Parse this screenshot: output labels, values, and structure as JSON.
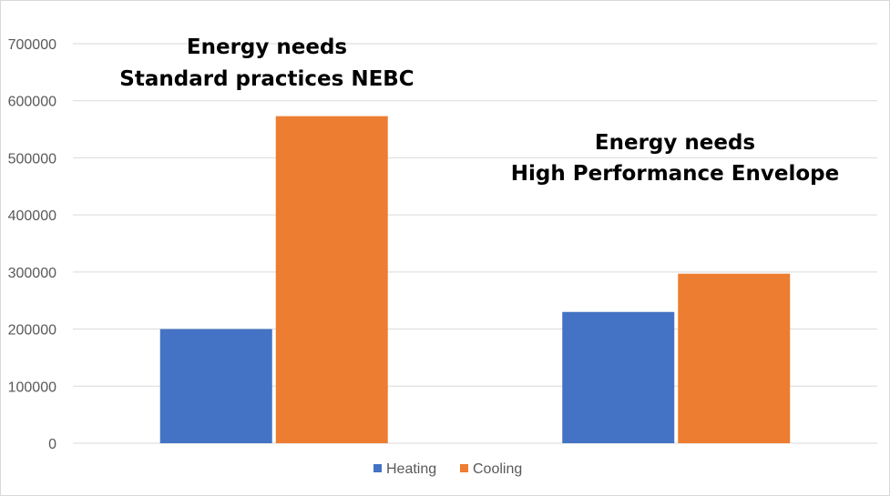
{
  "chart_data": {
    "type": "bar",
    "categories": [
      "",
      ""
    ],
    "series": [
      {
        "name": "Heating",
        "color": "#4472C4",
        "values": [
          200000,
          230000
        ]
      },
      {
        "name": "Cooling",
        "color": "#ED7D31",
        "values": [
          573000,
          297000
        ]
      }
    ],
    "ylim": [
      0,
      700000
    ],
    "yticks": [
      "0",
      "100000",
      "200000",
      "300000",
      "400000",
      "500000",
      "600000",
      "700000"
    ],
    "grid": true,
    "legend_position": "bottom",
    "annotations": [
      {
        "lines": [
          "Energy needs",
          "Standard practices NEBC"
        ]
      },
      {
        "lines": [
          "Energy needs",
          "High Performance Envelope"
        ]
      }
    ]
  }
}
